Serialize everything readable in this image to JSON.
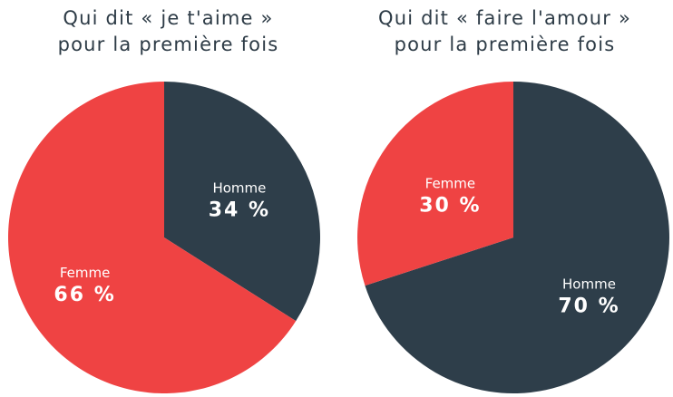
{
  "colors": {
    "homme": "#2e3e4a",
    "femme": "#ef4343"
  },
  "chart_data": [
    {
      "type": "pie",
      "title_lines": [
        "Qui dit « je t'aime »",
        "pour la première fois"
      ],
      "slices": [
        {
          "label": "Homme",
          "value": 34,
          "value_label": "34 %",
          "color": "#2e3e4a"
        },
        {
          "label": "Femme",
          "value": 66,
          "value_label": "66 %",
          "color": "#ef4343"
        }
      ]
    },
    {
      "type": "pie",
      "title_lines": [
        "Qui dit « faire l'amour »",
        "pour la première fois"
      ],
      "slices": [
        {
          "label": "Homme",
          "value": 70,
          "value_label": "70 %",
          "color": "#2e3e4a"
        },
        {
          "label": "Femme",
          "value": 30,
          "value_label": "30 %",
          "color": "#ef4343"
        }
      ]
    }
  ]
}
